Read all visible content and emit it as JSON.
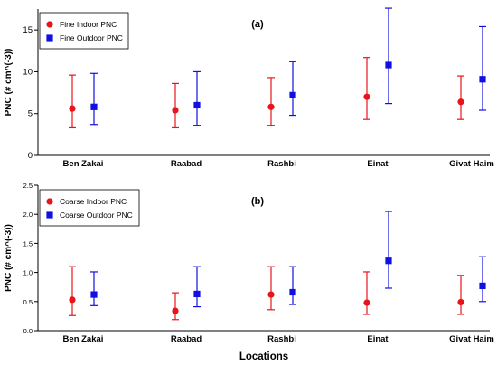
{
  "colors": {
    "indoor": "#e8141b",
    "outdoor": "#1010e0",
    "axis": "#000000",
    "background": "#ffffff"
  },
  "chart_data": [
    {
      "type": "scatter",
      "panel_label": "(a)",
      "ylabel": "PNC (# cm^(-3))",
      "xlabel": "",
      "categories": [
        "Ben Zakai",
        "Raabad",
        "Rashbi",
        "Einat",
        "Givat Haim"
      ],
      "ylim": [
        0,
        17.5
      ],
      "yticks": [
        0,
        5,
        10,
        15
      ],
      "ytick_labels": [
        "0",
        "5",
        "10",
        "15"
      ],
      "legend_position": "top-left",
      "series": [
        {
          "name": "Fine Indoor PNC",
          "marker": "circle",
          "color": "#e8141b",
          "values": [
            5.6,
            5.4,
            5.8,
            7.0,
            6.4
          ],
          "lower": [
            3.3,
            3.3,
            3.6,
            4.3,
            4.3
          ],
          "upper": [
            9.6,
            8.6,
            9.3,
            11.7,
            9.5
          ]
        },
        {
          "name": "Fine Outdoor PNC",
          "marker": "square",
          "color": "#1010e0",
          "values": [
            5.8,
            6.0,
            7.2,
            10.8,
            9.1
          ],
          "lower": [
            3.7,
            3.6,
            4.8,
            6.2,
            5.4
          ],
          "upper": [
            9.8,
            10.0,
            11.2,
            17.6,
            15.4
          ]
        }
      ]
    },
    {
      "type": "scatter",
      "panel_label": "(b)",
      "ylabel": "PNC (# cm^(-3))",
      "xlabel": "Locations",
      "categories": [
        "Ben Zakai",
        "Raabad",
        "Rashbi",
        "Einat",
        "Givat Haim"
      ],
      "ylim": [
        0,
        2.5
      ],
      "yticks": [
        0,
        0.5,
        1.0,
        1.5,
        2.0,
        2.5
      ],
      "ytick_labels": [
        "0.0",
        "0.5",
        "1.0",
        "1.5",
        "2.0",
        "2.5"
      ],
      "legend_position": "top-left",
      "series": [
        {
          "name": "Coarse Indoor PNC",
          "marker": "circle",
          "color": "#e8141b",
          "values": [
            0.53,
            0.34,
            0.62,
            0.48,
            0.49
          ],
          "lower": [
            0.26,
            0.19,
            0.36,
            0.28,
            0.28
          ],
          "upper": [
            1.1,
            0.65,
            1.1,
            1.01,
            0.95
          ]
        },
        {
          "name": "Coarse Outdoor PNC",
          "marker": "square",
          "color": "#1010e0",
          "values": [
            0.62,
            0.63,
            0.66,
            1.2,
            0.77
          ],
          "lower": [
            0.43,
            0.41,
            0.45,
            0.73,
            0.5
          ],
          "upper": [
            1.01,
            1.1,
            1.1,
            2.05,
            1.27
          ]
        }
      ]
    }
  ]
}
